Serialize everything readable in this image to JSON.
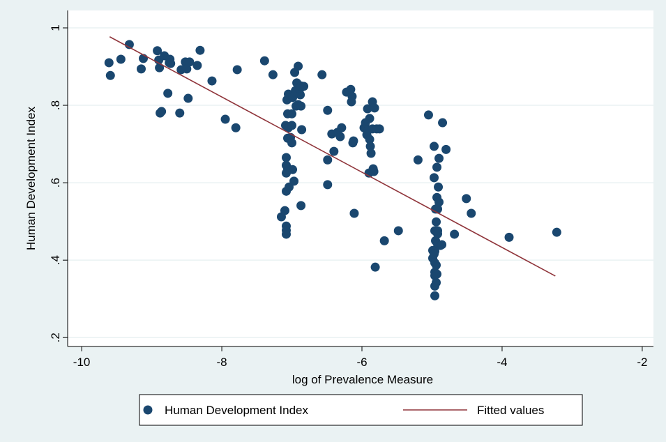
{
  "chart_data": {
    "type": "scatter",
    "xlabel": "log of Prevalence Measure",
    "ylabel": "Human Development Index",
    "xlim": [
      -10.2,
      -1.84
    ],
    "ylim": [
      0.177,
      1.045
    ],
    "xticks": [
      -10,
      -8,
      -6,
      -4,
      -2
    ],
    "yticks": [
      {
        "value": 0.2,
        "label": ".2"
      },
      {
        "value": 0.4,
        "label": ".4"
      },
      {
        "value": 0.6,
        "label": ".6"
      },
      {
        "value": 0.8,
        "label": ".8"
      },
      1
    ],
    "grid": true,
    "series": [
      {
        "name": "Human Development Index",
        "color": "#1a476f",
        "kind": "scatter",
        "x": [
          -9.61,
          -9.59,
          -9.44,
          -9.32,
          -9.15,
          -9.12,
          -8.92,
          -8.9,
          -8.89,
          -8.88,
          -8.86,
          -8.82,
          -8.77,
          -8.74,
          -8.73,
          -8.75,
          -8.6,
          -8.58,
          -8.52,
          -8.5,
          -8.48,
          -8.46,
          -8.35,
          -8.31,
          -8.14,
          -7.95,
          -7.8,
          -7.78,
          -7.39,
          -7.27,
          -7.15,
          -7.1,
          -7.08,
          -7.09,
          -7.07,
          -7.06,
          -7.08,
          -7.08,
          -7.08,
          -7.06,
          -7.06,
          -7.05,
          -7.05,
          -7.04,
          -7.08,
          -7.08,
          -7.08,
          -7.02,
          -7.0,
          -7.0,
          -6.99,
          -7.0,
          -6.99,
          -6.97,
          -6.96,
          -6.95,
          -6.94,
          -6.93,
          -6.91,
          -6.91,
          -6.89,
          -6.88,
          -6.87,
          -6.87,
          -6.86,
          -6.83,
          -6.87,
          -6.57,
          -6.49,
          -6.49,
          -6.49,
          -6.43,
          -6.4,
          -6.35,
          -6.31,
          -6.29,
          -6.22,
          -6.16,
          -6.15,
          -6.14,
          -6.13,
          -6.12,
          -6.11,
          -5.97,
          -5.95,
          -5.93,
          -5.92,
          -5.91,
          -5.9,
          -5.89,
          -5.89,
          -5.88,
          -5.87,
          -5.85,
          -5.85,
          -5.84,
          -5.83,
          -5.82,
          -5.81,
          -5.79,
          -5.75,
          -5.68,
          -5.48,
          -5.2,
          -5.05,
          -4.99,
          -4.97,
          -4.97,
          -4.96,
          -4.96,
          -4.95,
          -4.94,
          -4.93,
          -4.93,
          -4.92,
          -4.92,
          -4.96,
          -4.95,
          -4.96,
          -4.96,
          -4.96,
          -4.96,
          -4.94,
          -4.94,
          -4.93,
          -4.92,
          -4.92,
          -4.91,
          -4.9,
          -4.9,
          -4.88,
          -4.86,
          -4.85,
          -4.8,
          -4.68,
          -4.51,
          -4.44,
          -3.9,
          -3.22,
          -4.99,
          -4.97
        ],
        "values": [
          0.91,
          0.877,
          0.919,
          0.957,
          0.894,
          0.921,
          0.941,
          0.917,
          0.897,
          0.78,
          0.784,
          0.928,
          0.831,
          0.919,
          0.908,
          0.91,
          0.78,
          0.892,
          0.912,
          0.894,
          0.818,
          0.912,
          0.903,
          0.942,
          0.863,
          0.764,
          0.742,
          0.892,
          0.915,
          0.879,
          0.512,
          0.528,
          0.578,
          0.748,
          0.814,
          0.778,
          0.665,
          0.645,
          0.625,
          0.715,
          0.636,
          0.742,
          0.829,
          0.589,
          0.488,
          0.467,
          0.477,
          0.717,
          0.748,
          0.703,
          0.634,
          0.778,
          0.82,
          0.604,
          0.885,
          0.838,
          0.798,
          0.858,
          0.901,
          0.802,
          0.841,
          0.827,
          0.85,
          0.798,
          0.737,
          0.849,
          0.541,
          0.879,
          0.787,
          0.659,
          0.595,
          0.726,
          0.681,
          0.73,
          0.719,
          0.742,
          0.834,
          0.841,
          0.809,
          0.823,
          0.703,
          0.708,
          0.521,
          0.742,
          0.755,
          0.724,
          0.791,
          0.737,
          0.625,
          0.766,
          0.712,
          0.694,
          0.676,
          0.809,
          0.739,
          0.636,
          0.629,
          0.793,
          0.382,
          0.739,
          0.739,
          0.45,
          0.476,
          0.659,
          0.775,
          0.405,
          0.694,
          0.613,
          0.423,
          0.369,
          0.532,
          0.499,
          0.64,
          0.562,
          0.532,
          0.476,
          0.476,
          0.45,
          0.393,
          0.36,
          0.333,
          0.308,
          0.387,
          0.342,
          0.364,
          0.468,
          0.441,
          0.589,
          0.55,
          0.663,
          0.438,
          0.44,
          0.755,
          0.686,
          0.467,
          0.559,
          0.521,
          0.459,
          0.472,
          0.425,
          0.416
        ]
      },
      {
        "name": "Fitted values",
        "color": "#90353b",
        "kind": "line",
        "x": [
          -9.6,
          -3.24
        ],
        "values": [
          0.977,
          0.359
        ]
      }
    ]
  }
}
